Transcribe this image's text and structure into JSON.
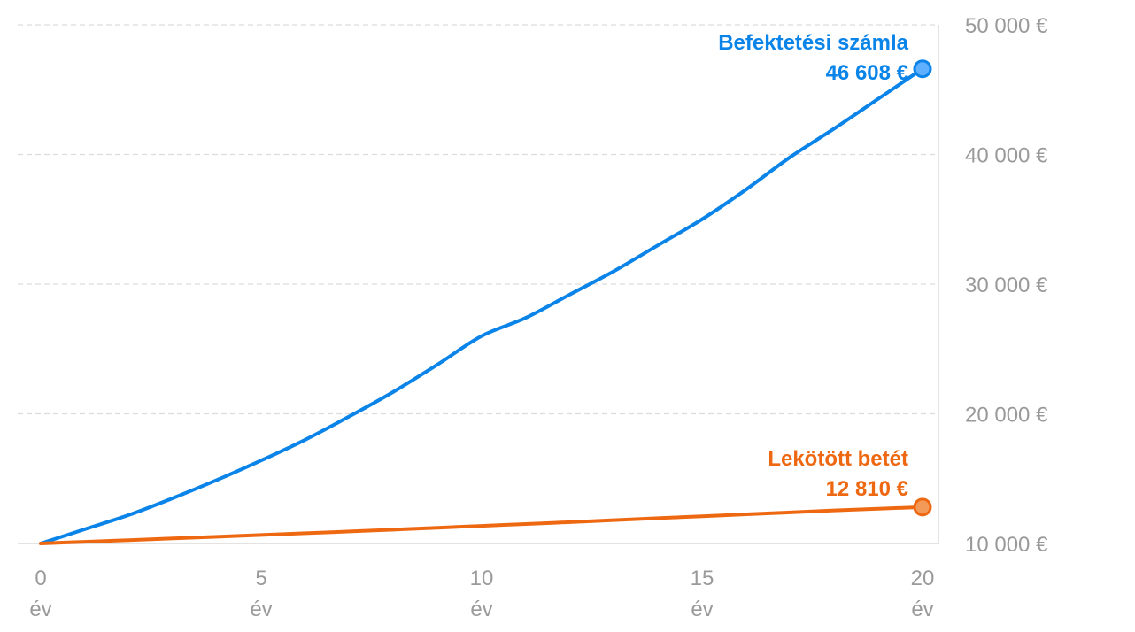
{
  "chart_data": {
    "type": "line",
    "x": [
      0,
      1,
      2,
      3,
      4,
      5,
      6,
      7,
      8,
      9,
      10,
      11,
      12,
      13,
      14,
      15,
      16,
      17,
      18,
      19,
      20
    ],
    "x_tick_values": [
      0,
      5,
      10,
      15,
      20
    ],
    "x_tick_labels": [
      "0",
      "5",
      "10",
      "15",
      "20"
    ],
    "x_tick_unit": "év",
    "ylim": [
      10000,
      50000
    ],
    "y_ticks": [
      10000,
      20000,
      30000,
      40000,
      50000
    ],
    "y_tick_labels": [
      "10 000 €",
      "20 000 €",
      "30 000 €",
      "40 000 €",
      "50 000 €"
    ],
    "grid": true,
    "series": [
      {
        "name": "Befektetési számla",
        "end_label": "46 608 €",
        "color": "#0a84e8",
        "values": [
          10000,
          11100,
          12200,
          13500,
          14900,
          16400,
          18000,
          19800,
          21700,
          23800,
          26000,
          27400,
          29200,
          31000,
          33000,
          35000,
          37300,
          39800,
          42000,
          44300,
          46608
        ]
      },
      {
        "name": "Lekötött betét",
        "end_label": "12 810 €",
        "color": "#ee6812",
        "values": [
          10000,
          10130,
          10260,
          10390,
          10520,
          10660,
          10790,
          10930,
          11070,
          11210,
          11360,
          11500,
          11650,
          11800,
          11950,
          12100,
          12250,
          12400,
          12550,
          12680,
          12810
        ]
      }
    ]
  }
}
